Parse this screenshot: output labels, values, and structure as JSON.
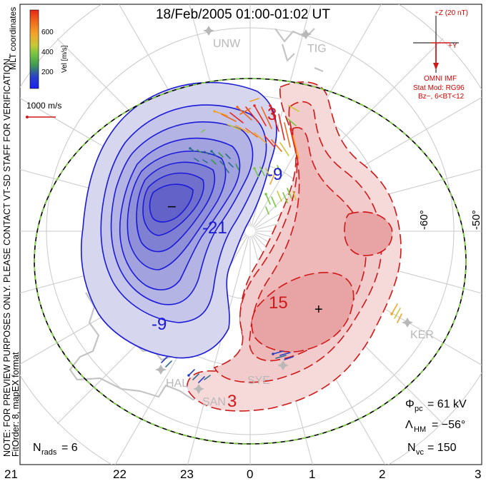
{
  "title": "18/Feb/2005 01:00-01:02 UT",
  "note_line1": "NOTE: FOR PREVIEW PURPOSES ONLY. PLEASE CONTACT VT-SD STAFF FOR VERIFICATION.",
  "note_line2": "FitOrder: 8, mapEX format",
  "coord_label": "MLT coordinates",
  "colorbar": {
    "label": "Vel [m/s]",
    "ticks": [
      "600",
      "400",
      "200"
    ],
    "colors": [
      "#e8261a",
      "#f06a1c",
      "#f2a42a",
      "#c8c83a",
      "#7ac640",
      "#3f9a52",
      "#2d6f90",
      "#2a3fc8",
      "#1e1ef0"
    ]
  },
  "scale_vector_label": "1000 m/s",
  "mlt_labels": [
    "21",
    "22",
    "23",
    "0",
    "1",
    "2",
    "3"
  ],
  "lat_labels": [
    "-60°",
    "-50°"
  ],
  "stations": [
    "UNW",
    "TIG",
    "HAL",
    "SAN",
    "SYE",
    "KER"
  ],
  "contours": {
    "negative_labels": [
      "-21",
      "-9",
      "-9"
    ],
    "positive_labels": [
      "15",
      "3",
      "3"
    ],
    "min_marker": "−",
    "max_marker": "+"
  },
  "imf": {
    "z_label": "+Z (20 nT)",
    "y_label": "+Y",
    "title": "OMNI IMF",
    "stat_mod": "Stat Mod: RG96",
    "bz": "Bz−, 6<BT<12"
  },
  "stats": {
    "phi_label": "Φ",
    "phi_sub": "pc",
    "phi_value": "=  61 kV",
    "lam_label": "Λ",
    "lam_sub": "HM",
    "lam_value": "= −56°",
    "nvc_label": "N",
    "nvc_sub": "vc",
    "nvc_value": "=  150",
    "nrads_label": "N",
    "nrads_sub": "rads",
    "nrads_value": "=  6"
  },
  "colors": {
    "negative_line": "#1a1ad8",
    "positive_line": "#d01818",
    "hmb": "#7cd33a",
    "grid": "#c8c8c8",
    "coast": "#c4c4c4"
  }
}
